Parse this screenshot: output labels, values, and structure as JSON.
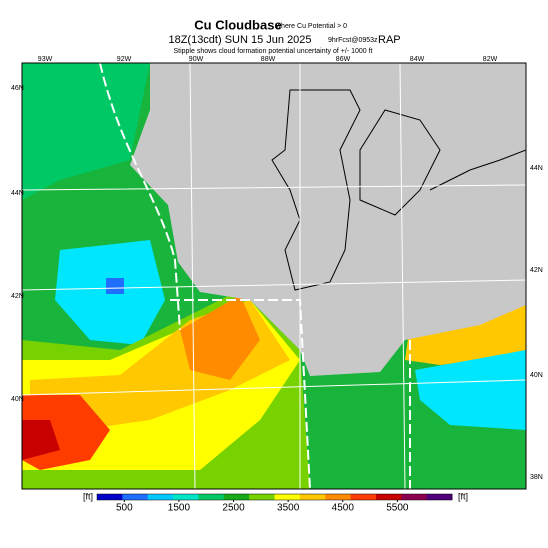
{
  "header": {
    "title": "Cu Cloudbase",
    "title_note": "where Cu Potential > 0",
    "valid": "18Z(13cdt) SUN 15 Jun 2025",
    "forecast": "9hrFcst@0953z",
    "model": "RAP",
    "subtitle": "Stipple shows cloud formation potential uncertainty of +/- 1000 ft"
  },
  "map": {
    "top_labels": [
      "93W",
      "92W",
      "90W",
      "88W",
      "86W",
      "84W",
      "82W"
    ],
    "left_labels": [
      "46N",
      "44N",
      "42N",
      "40N"
    ],
    "right_labels": [
      "44N",
      "42N",
      "40N",
      "38N"
    ]
  },
  "colorbar": {
    "unit_left": "[ft]",
    "unit_right": "[ft]",
    "range": [
      0,
      6500
    ],
    "ticks": [
      500,
      1500,
      2500,
      3500,
      4500,
      5500
    ],
    "colors": [
      "#0000c8",
      "#1e6eff",
      "#00c8ff",
      "#00e6c8",
      "#00c864",
      "#19aa19",
      "#78d200",
      "#ffff00",
      "#ffc800",
      "#ff8c00",
      "#ff3c00",
      "#c80000",
      "#8c0050",
      "#500078"
    ]
  }
}
